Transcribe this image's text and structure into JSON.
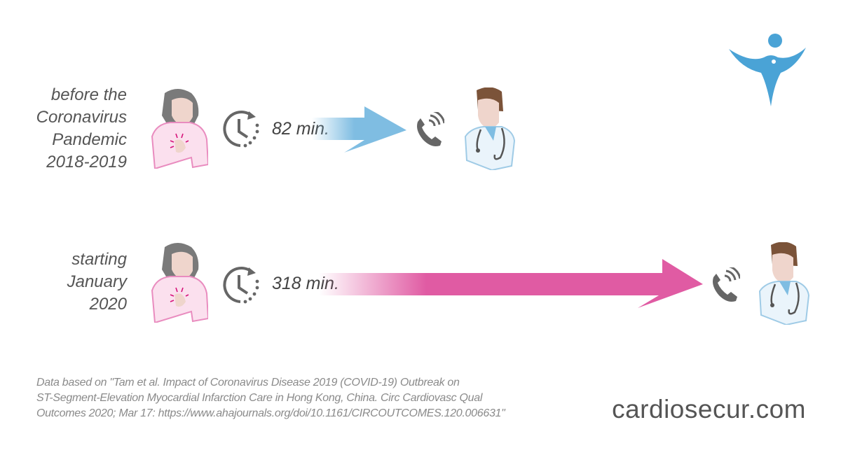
{
  "rows": [
    {
      "label": "before the\nCoronavirus\nPandemic\n2018-2019",
      "duration": "82 min.",
      "arrow_color": "#7fbde2"
    },
    {
      "label": "starting\nJanuary\n2020",
      "duration": "318 min.",
      "arrow_color": "#e05ba3"
    }
  ],
  "citation": "Data based on \"Tam et al. Impact of Coronavirus Disease 2019 (COVID-19) Outbreak on\nST-Segment-Elevation Myocardial Infarction Care in Hong Kong, China. Circ Cardiovasc Qual\nOutcomes 2020; Mar 17: https://www.ahajournals.org/doi/10.1161/CIRCOUTCOMES.120.006631\"",
  "brand": {
    "name": "cardiosecur.com",
    "logo_color": "#4aa3d6"
  },
  "icons": [
    "woman-chest-pain-icon",
    "clock-icon",
    "phone-icon",
    "doctor-icon",
    "arrow-icon"
  ]
}
